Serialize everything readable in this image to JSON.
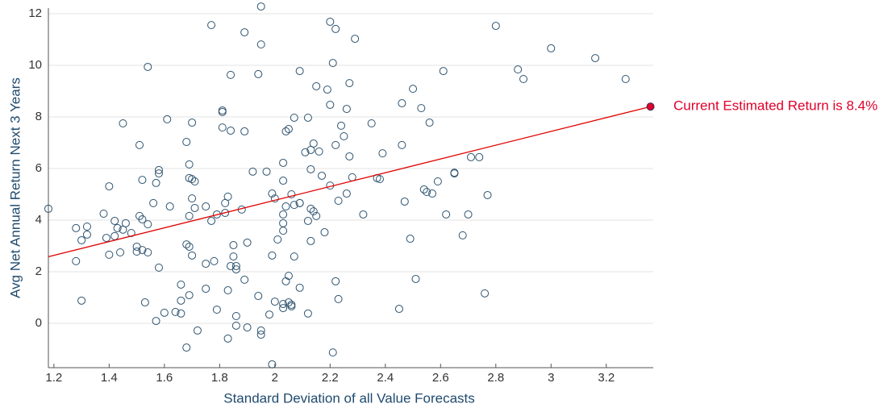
{
  "chart_data": {
    "type": "scatter",
    "x_label": "Standard Deviation of all Value Forecasts",
    "y_label": "Avg Net Annual Return Next 3 Years",
    "xlim": [
      1.18,
      3.37
    ],
    "ylim": [
      -1.72,
      12.22
    ],
    "xticks": [
      1.2,
      1.4,
      1.6,
      1.8,
      2,
      2.2,
      2.4,
      2.6,
      2.8,
      3,
      3.2
    ],
    "yticks": [
      0,
      2,
      4,
      6,
      8,
      10,
      12
    ],
    "grid": true,
    "color": "#2e5470",
    "x": [
      1.18,
      1.28,
      1.28,
      1.3,
      1.3,
      1.32,
      1.32,
      1.38,
      1.39,
      1.4,
      1.4,
      1.42,
      1.42,
      1.43,
      1.44,
      1.45,
      1.45,
      1.46,
      1.48,
      1.5,
      1.5,
      1.51,
      1.51,
      1.52,
      1.52,
      1.52,
      1.53,
      1.54,
      1.54,
      1.54,
      1.56,
      1.57,
      1.57,
      1.58,
      1.58,
      1.58,
      1.6,
      1.61,
      1.62,
      1.64,
      1.66,
      1.66,
      1.66,
      1.68,
      1.68,
      1.68,
      1.69,
      1.69,
      1.69,
      1.69,
      1.69,
      1.7,
      1.7,
      1.7,
      1.71,
      1.71,
      1.72,
      1.7,
      1.75,
      1.75,
      1.75,
      1.77,
      1.77,
      1.78,
      1.79,
      1.79,
      1.81,
      1.81,
      1.81,
      1.82,
      1.82,
      1.83,
      1.83,
      1.83,
      1.84,
      1.84,
      1.84,
      1.85,
      1.85,
      1.86,
      1.86,
      1.86,
      1.86,
      1.88,
      1.89,
      1.89,
      1.89,
      1.9,
      1.9,
      1.92,
      1.94,
      1.94,
      1.95,
      1.95,
      1.95,
      1.95,
      1.97,
      1.98,
      1.99,
      1.99,
      1.99,
      2.0,
      2.0,
      2.01,
      2.03,
      2.03,
      2.03,
      2.03,
      2.03,
      2.03,
      2.03,
      2.04,
      2.04,
      2.04,
      2.05,
      2.05,
      2.05,
      2.06,
      2.06,
      2.06,
      2.07,
      2.07,
      2.07,
      2.09,
      2.09,
      2.09,
      2.09,
      2.11,
      2.12,
      2.12,
      2.12,
      2.13,
      2.13,
      2.13,
      2.13,
      2.14,
      2.14,
      2.15,
      2.15,
      2.16,
      2.17,
      2.18,
      2.19,
      2.2,
      2.2,
      2.2,
      2.21,
      2.21,
      2.22,
      2.22,
      2.22,
      2.23,
      2.23,
      2.24,
      2.25,
      2.26,
      2.26,
      2.27,
      2.27,
      2.28,
      2.29,
      2.32,
      2.35,
      2.37,
      2.38,
      2.39,
      2.46,
      2.46,
      2.45,
      2.47,
      2.49,
      2.5,
      2.51,
      2.53,
      2.54,
      2.55,
      2.57,
      2.56,
      2.59,
      2.61,
      2.62,
      2.65,
      2.65,
      2.68,
      2.7,
      2.71,
      2.74,
      2.76,
      2.77,
      2.8,
      2.88,
      2.9,
      3.0,
      3.16,
      3.27
    ],
    "y": [
      4.44,
      3.69,
      2.41,
      3.22,
      0.88,
      3.44,
      3.75,
      4.25,
      3.31,
      5.31,
      2.66,
      3.97,
      3.38,
      3.69,
      2.75,
      7.75,
      3.63,
      3.88,
      3.5,
      2.97,
      2.78,
      4.16,
      6.91,
      2.84,
      4.03,
      5.56,
      0.81,
      3.84,
      9.94,
      2.75,
      4.66,
      5.44,
      0.09,
      5.94,
      5.81,
      2.16,
      0.41,
      7.91,
      4.53,
      0.44,
      1.5,
      0.88,
      0.38,
      -0.94,
      7.03,
      3.06,
      5.63,
      2.97,
      4.16,
      1.09,
      6.16,
      7.78,
      4.84,
      5.59,
      4.47,
      5.5,
      -0.28,
      2.63,
      4.53,
      2.31,
      1.34,
      11.56,
      3.97,
      2.41,
      4.22,
      0.53,
      7.59,
      8.19,
      8.25,
      4.66,
      4.28,
      4.91,
      1.28,
      -0.59,
      9.63,
      7.47,
      2.22,
      3.03,
      2.59,
      2.22,
      0.28,
      -0.09,
      2.09,
      4.41,
      11.28,
      7.44,
      1.69,
      -0.16,
      3.13,
      5.88,
      9.66,
      1.06,
      12.28,
      10.81,
      -0.28,
      -0.44,
      5.88,
      0.34,
      -1.59,
      5.03,
      2.63,
      4.84,
      0.84,
      3.25,
      5.53,
      3.59,
      0.75,
      3.88,
      6.22,
      4.22,
      0.59,
      7.44,
      1.63,
      4.53,
      7.53,
      1.84,
      0.81,
      5.0,
      0.72,
      0.66,
      7.97,
      2.59,
      4.59,
      4.66,
      9.78,
      4.66,
      1.38,
      6.63,
      7.97,
      3.97,
      0.38,
      6.72,
      3.19,
      5.97,
      4.44,
      6.97,
      4.34,
      9.19,
      4.16,
      6.66,
      5.72,
      3.53,
      9.06,
      8.47,
      5.34,
      11.69,
      10.09,
      -1.13,
      1.63,
      11.41,
      6.91,
      4.75,
      0.94,
      7.66,
      7.25,
      5.03,
      8.31,
      9.31,
      6.47,
      5.66,
      11.03,
      4.22,
      7.75,
      5.63,
      5.59,
      6.59,
      6.91,
      8.53,
      0.56,
      4.72,
      3.28,
      9.09,
      1.72,
      8.34,
      5.19,
      5.09,
      5.03,
      7.78,
      5.5,
      9.78,
      4.22,
      5.84,
      5.81,
      3.41,
      4.22,
      6.44,
      6.44,
      1.16,
      4.97,
      11.53,
      9.84,
      9.47,
      10.66,
      10.28,
      9.47
    ],
    "trend": {
      "color": "#e00000",
      "x": [
        1.18,
        3.36
      ],
      "y": [
        2.58,
        8.4
      ]
    },
    "highlight": {
      "x": 3.36,
      "y": 8.4,
      "color": "#e0002a",
      "label": "Current Estimated Return is 8.4%"
    }
  }
}
